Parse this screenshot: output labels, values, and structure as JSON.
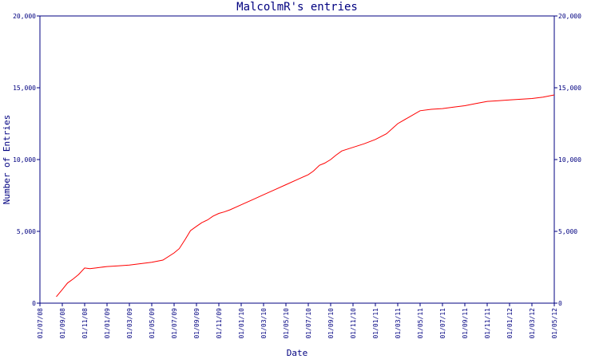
{
  "chart_data": {
    "type": "line",
    "title": "MalcolmR's entries",
    "xlabel": "Date",
    "ylabel": "Number of Entries",
    "x_ticks": [
      "01/07/08",
      "01/09/08",
      "01/11/08",
      "01/01/09",
      "01/03/09",
      "01/05/09",
      "01/07/09",
      "01/09/09",
      "01/11/09",
      "01/01/10",
      "01/03/10",
      "01/05/10",
      "01/07/10",
      "01/09/10",
      "01/11/10",
      "01/01/11",
      "01/03/11",
      "01/05/11",
      "01/07/11",
      "01/09/11",
      "01/11/11",
      "01/01/12",
      "01/03/12",
      "01/05/12"
    ],
    "y_ticks": [
      0,
      5000,
      10000,
      15000,
      20000
    ],
    "y_tick_labels": [
      "0",
      "5,000",
      "10,000",
      "15,000",
      "20,000"
    ],
    "ylim": [
      0,
      20000
    ],
    "xlim": [
      "2008-07-01",
      "2012-05-01"
    ],
    "grid": false,
    "line_color": "#ff0000",
    "axis_color": "#000080",
    "series": [
      {
        "x": [
          "2008-08-15",
          "2008-09-01",
          "2008-09-15",
          "2008-10-01",
          "2008-10-15",
          "2008-11-01",
          "2008-11-15",
          "2008-12-01",
          "2008-12-15",
          "2009-01-01",
          "2009-02-01",
          "2009-03-01",
          "2009-04-01",
          "2009-05-01",
          "2009-06-01",
          "2009-07-01",
          "2009-07-15",
          "2009-08-01",
          "2009-08-15",
          "2009-09-01",
          "2009-09-15",
          "2009-10-01",
          "2009-10-15",
          "2009-11-01",
          "2009-11-15",
          "2009-12-01",
          "2010-01-01",
          "2010-02-01",
          "2010-03-01",
          "2010-04-01",
          "2010-05-01",
          "2010-06-01",
          "2010-07-01",
          "2010-07-15",
          "2010-08-01",
          "2010-08-15",
          "2010-09-01",
          "2010-09-15",
          "2010-10-01",
          "2010-11-01",
          "2010-12-01",
          "2011-01-01",
          "2011-02-01",
          "2011-03-01",
          "2011-04-01",
          "2011-05-01",
          "2011-06-01",
          "2011-07-01",
          "2011-08-01",
          "2011-09-01",
          "2011-10-01",
          "2011-11-01",
          "2011-12-01",
          "2012-01-01",
          "2012-02-01",
          "2012-03-01",
          "2012-04-01",
          "2012-05-01"
        ],
        "values": [
          450,
          950,
          1400,
          1700,
          2000,
          2450,
          2400,
          2450,
          2500,
          2550,
          2600,
          2650,
          2750,
          2850,
          3000,
          3500,
          3800,
          4450,
          5050,
          5350,
          5600,
          5800,
          6050,
          6250,
          6350,
          6500,
          6850,
          7200,
          7550,
          7900,
          8250,
          8600,
          8950,
          9200,
          9600,
          9750,
          10000,
          10300,
          10600,
          10850,
          11100,
          11400,
          11800,
          12500,
          12950,
          13400,
          13500,
          13550,
          13650,
          13750,
          13900,
          14050,
          14100,
          14150,
          14200,
          14250,
          14350,
          14500
        ]
      }
    ]
  }
}
